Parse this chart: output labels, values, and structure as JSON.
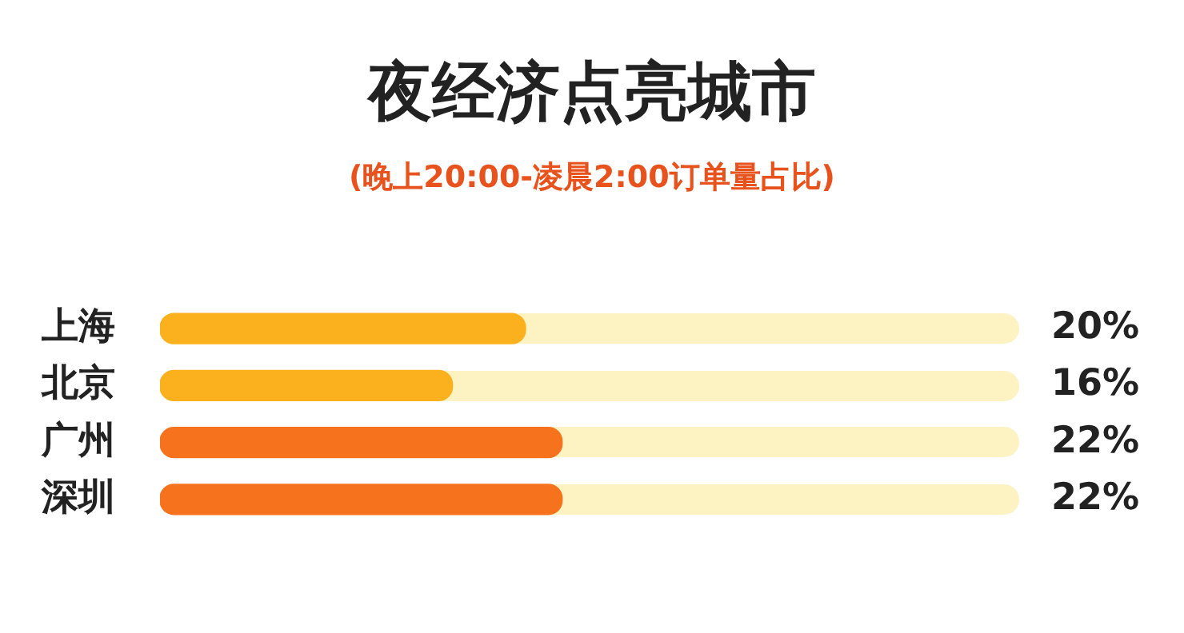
{
  "chart_data": {
    "type": "bar",
    "orientation": "horizontal",
    "title": "夜经济点亮城市",
    "subtitle": "(晚上20:00-凌晨2:00订单量占比)",
    "categories": [
      "上海",
      "北京",
      "广州",
      "深圳"
    ],
    "values": [
      20,
      16,
      22,
      22
    ],
    "colors": [
      "#fbb01e",
      "#fbb01e",
      "#f7721c",
      "#f7721c"
    ],
    "value_labels": [
      "20%",
      "16%",
      "22%",
      "22%"
    ],
    "xlim": [
      0,
      47
    ],
    "tick_labels": "y"
  }
}
